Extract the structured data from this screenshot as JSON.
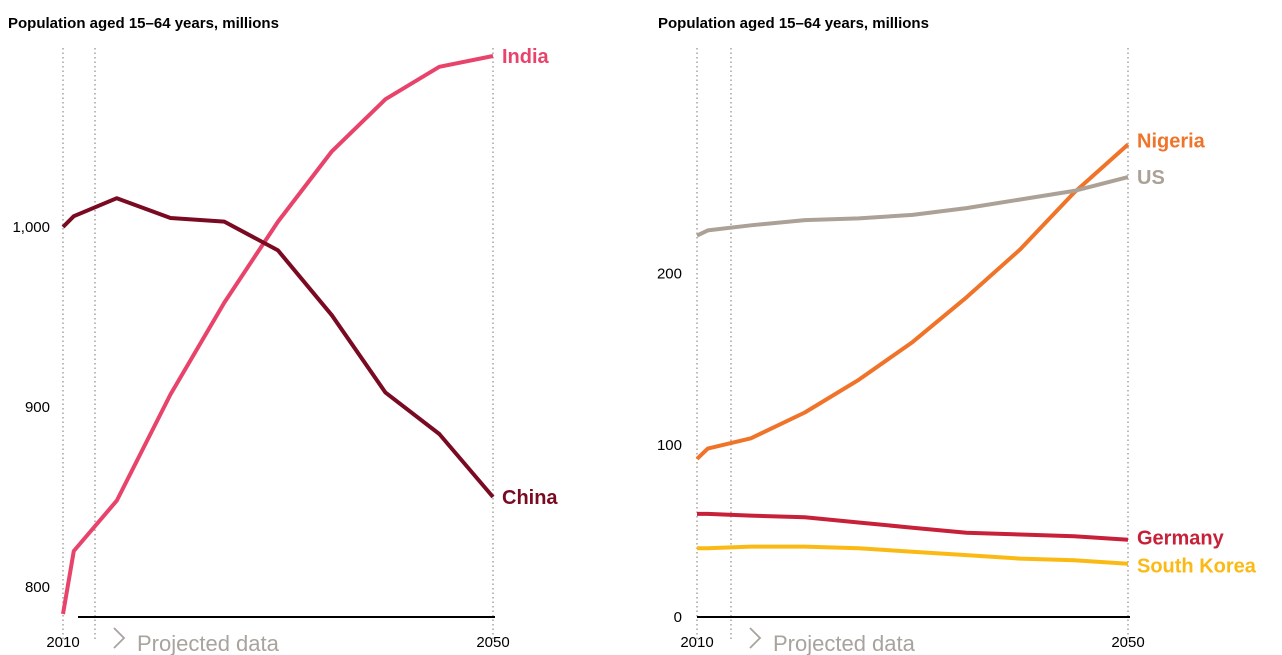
{
  "projected_note": "Projected data",
  "colors": {
    "India": "#e8436b",
    "China": "#7a0a22",
    "Nigeria": "#ef7429",
    "US": "#aca196",
    "Germany": "#c72039",
    "South Korea": "#fbb914",
    "guide": "#a8a39c"
  },
  "chart_data": [
    {
      "type": "line",
      "title": "Population aged 15–64 years, millions",
      "x": [
        2010,
        2011,
        2015,
        2020,
        2025,
        2030,
        2035,
        2040,
        2045,
        2050
      ],
      "x_tick_labels": [
        "2010",
        "2050"
      ],
      "y_tick_labels": [
        "800",
        "900",
        "1,000"
      ],
      "y_ticks": [
        800,
        900,
        1000
      ],
      "ylim": [
        785,
        1100
      ],
      "projection_start": 2011,
      "series": [
        {
          "name": "India",
          "values": [
            785,
            820,
            848,
            907,
            958,
            1003,
            1042,
            1071,
            1089,
            1095
          ]
        },
        {
          "name": "China",
          "values": [
            1000,
            1006,
            1016,
            1005,
            1003,
            987,
            951,
            908,
            885,
            850
          ]
        }
      ]
    },
    {
      "type": "line",
      "title": "Population aged 15–64 years, millions",
      "x": [
        2010,
        2011,
        2015,
        2020,
        2025,
        2030,
        2035,
        2040,
        2045,
        2050
      ],
      "x_tick_labels": [
        "2010",
        "2050"
      ],
      "y_tick_labels": [
        "0",
        "100",
        "200"
      ],
      "y_ticks": [
        0,
        100,
        200
      ],
      "ylim": [
        0,
        330
      ],
      "projection_start": 2011,
      "series": [
        {
          "name": "Nigeria",
          "values": [
            92,
            98,
            104,
            119,
            138,
            160,
            186,
            214,
            247,
            275
          ]
        },
        {
          "name": "US",
          "values": [
            222,
            225,
            228,
            231,
            232,
            234,
            238,
            243,
            248,
            256
          ]
        },
        {
          "name": "Germany",
          "values": [
            60,
            60,
            59,
            58,
            55,
            52,
            49,
            48,
            47,
            45
          ]
        },
        {
          "name": "South Korea",
          "values": [
            40,
            40,
            41,
            41,
            40,
            38,
            36,
            34,
            33,
            31
          ]
        }
      ]
    }
  ]
}
